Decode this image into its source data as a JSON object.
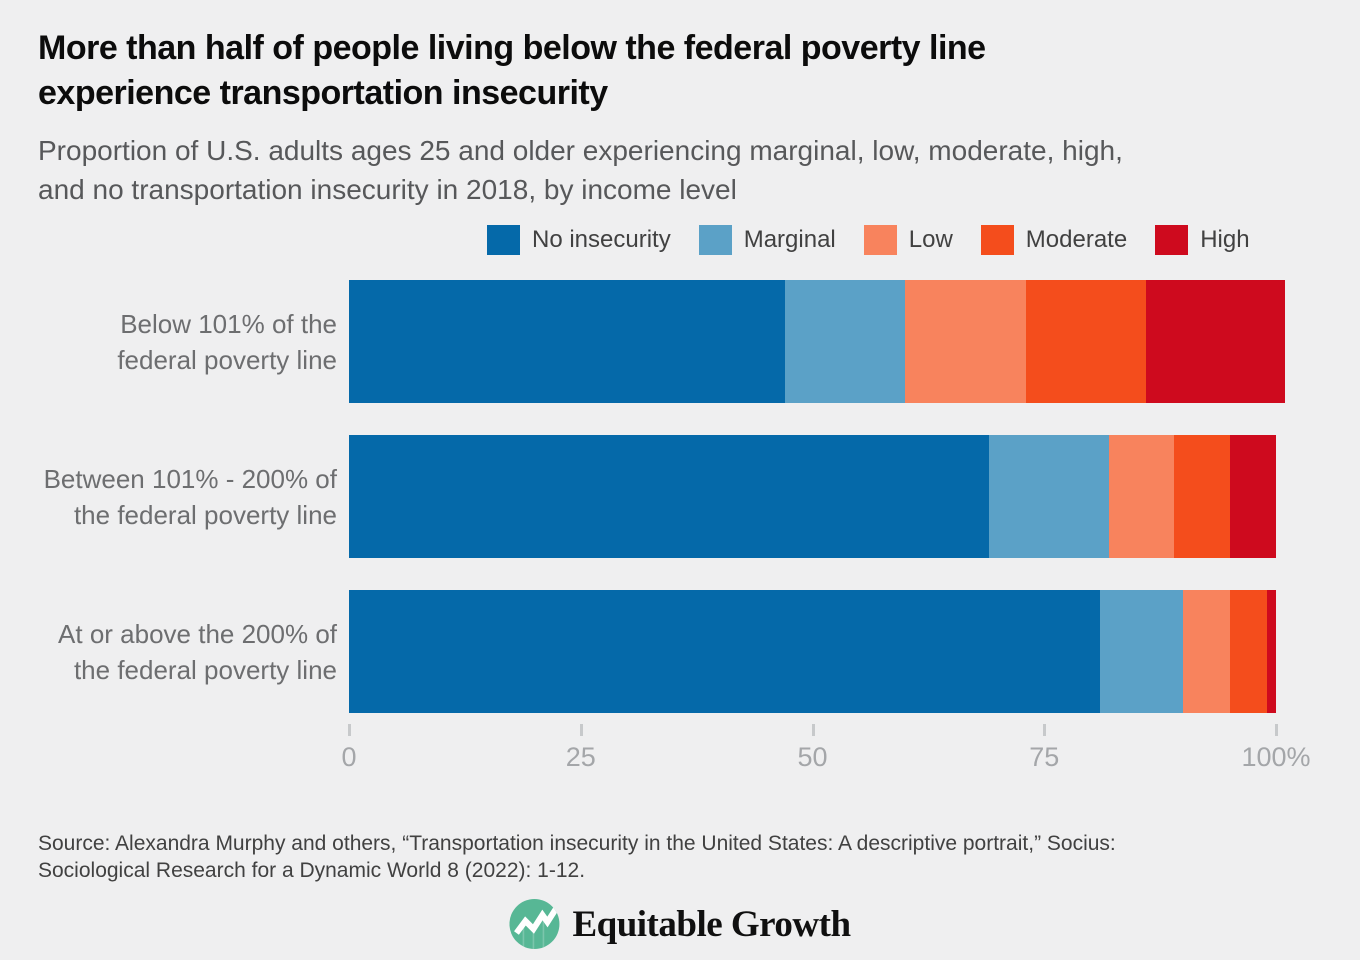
{
  "page": {
    "background": "#efeff0",
    "title": "More than half of people living below the federal poverty line\nexperience transportation insecurity",
    "subtitle": "Proportion of U.S. adults ages 25 and older experiencing marginal, low, moderate, high,\nand no transportation insecurity in 2018, by income level",
    "source": "Source: Alexandra Murphy and others, “Transportation insecurity in the United States: A descriptive portrait,” Socius:\nSociological Research for a Dynamic World 8 (2022): 1-12.",
    "logo_text": "Equitable Growth",
    "logo_color": "#57b795"
  },
  "chart_data": {
    "type": "bar",
    "orientation": "horizontal",
    "stacked": true,
    "title": "More than half of people living below the federal poverty line experience transportation insecurity",
    "subtitle": "Proportion of U.S. adults ages 25 and older experiencing marginal, low, moderate, high, and no transportation insecurity in 2018, by income level",
    "unit": "percent of adults ages 25 and older",
    "categories": [
      "Below 101% of the\nfederal poverty line",
      "Between 101% - 200% of\nthe federal poverty line",
      "At or above the 200% of\nthe federal poverty line"
    ],
    "series": [
      {
        "name": "No insecurity",
        "color": "#0569a9",
        "values": [
          47,
          69,
          81
        ]
      },
      {
        "name": "Marginal",
        "color": "#5ba1c7",
        "values": [
          13,
          13,
          9
        ]
      },
      {
        "name": "Low",
        "color": "#f8835d",
        "values": [
          13,
          7,
          5
        ]
      },
      {
        "name": "Moderate",
        "color": "#f44d1c",
        "values": [
          13,
          6,
          4
        ]
      },
      {
        "name": "High",
        "color": "#ce0a1e",
        "values": [
          15,
          5,
          1
        ]
      }
    ],
    "x_axis": {
      "range": [
        0,
        100
      ],
      "ticks": [
        0,
        25,
        50,
        75,
        100
      ],
      "tick_labels": [
        "0",
        "25",
        "50",
        "75",
        "100%"
      ]
    },
    "legend_position": "top",
    "grid": false
  }
}
